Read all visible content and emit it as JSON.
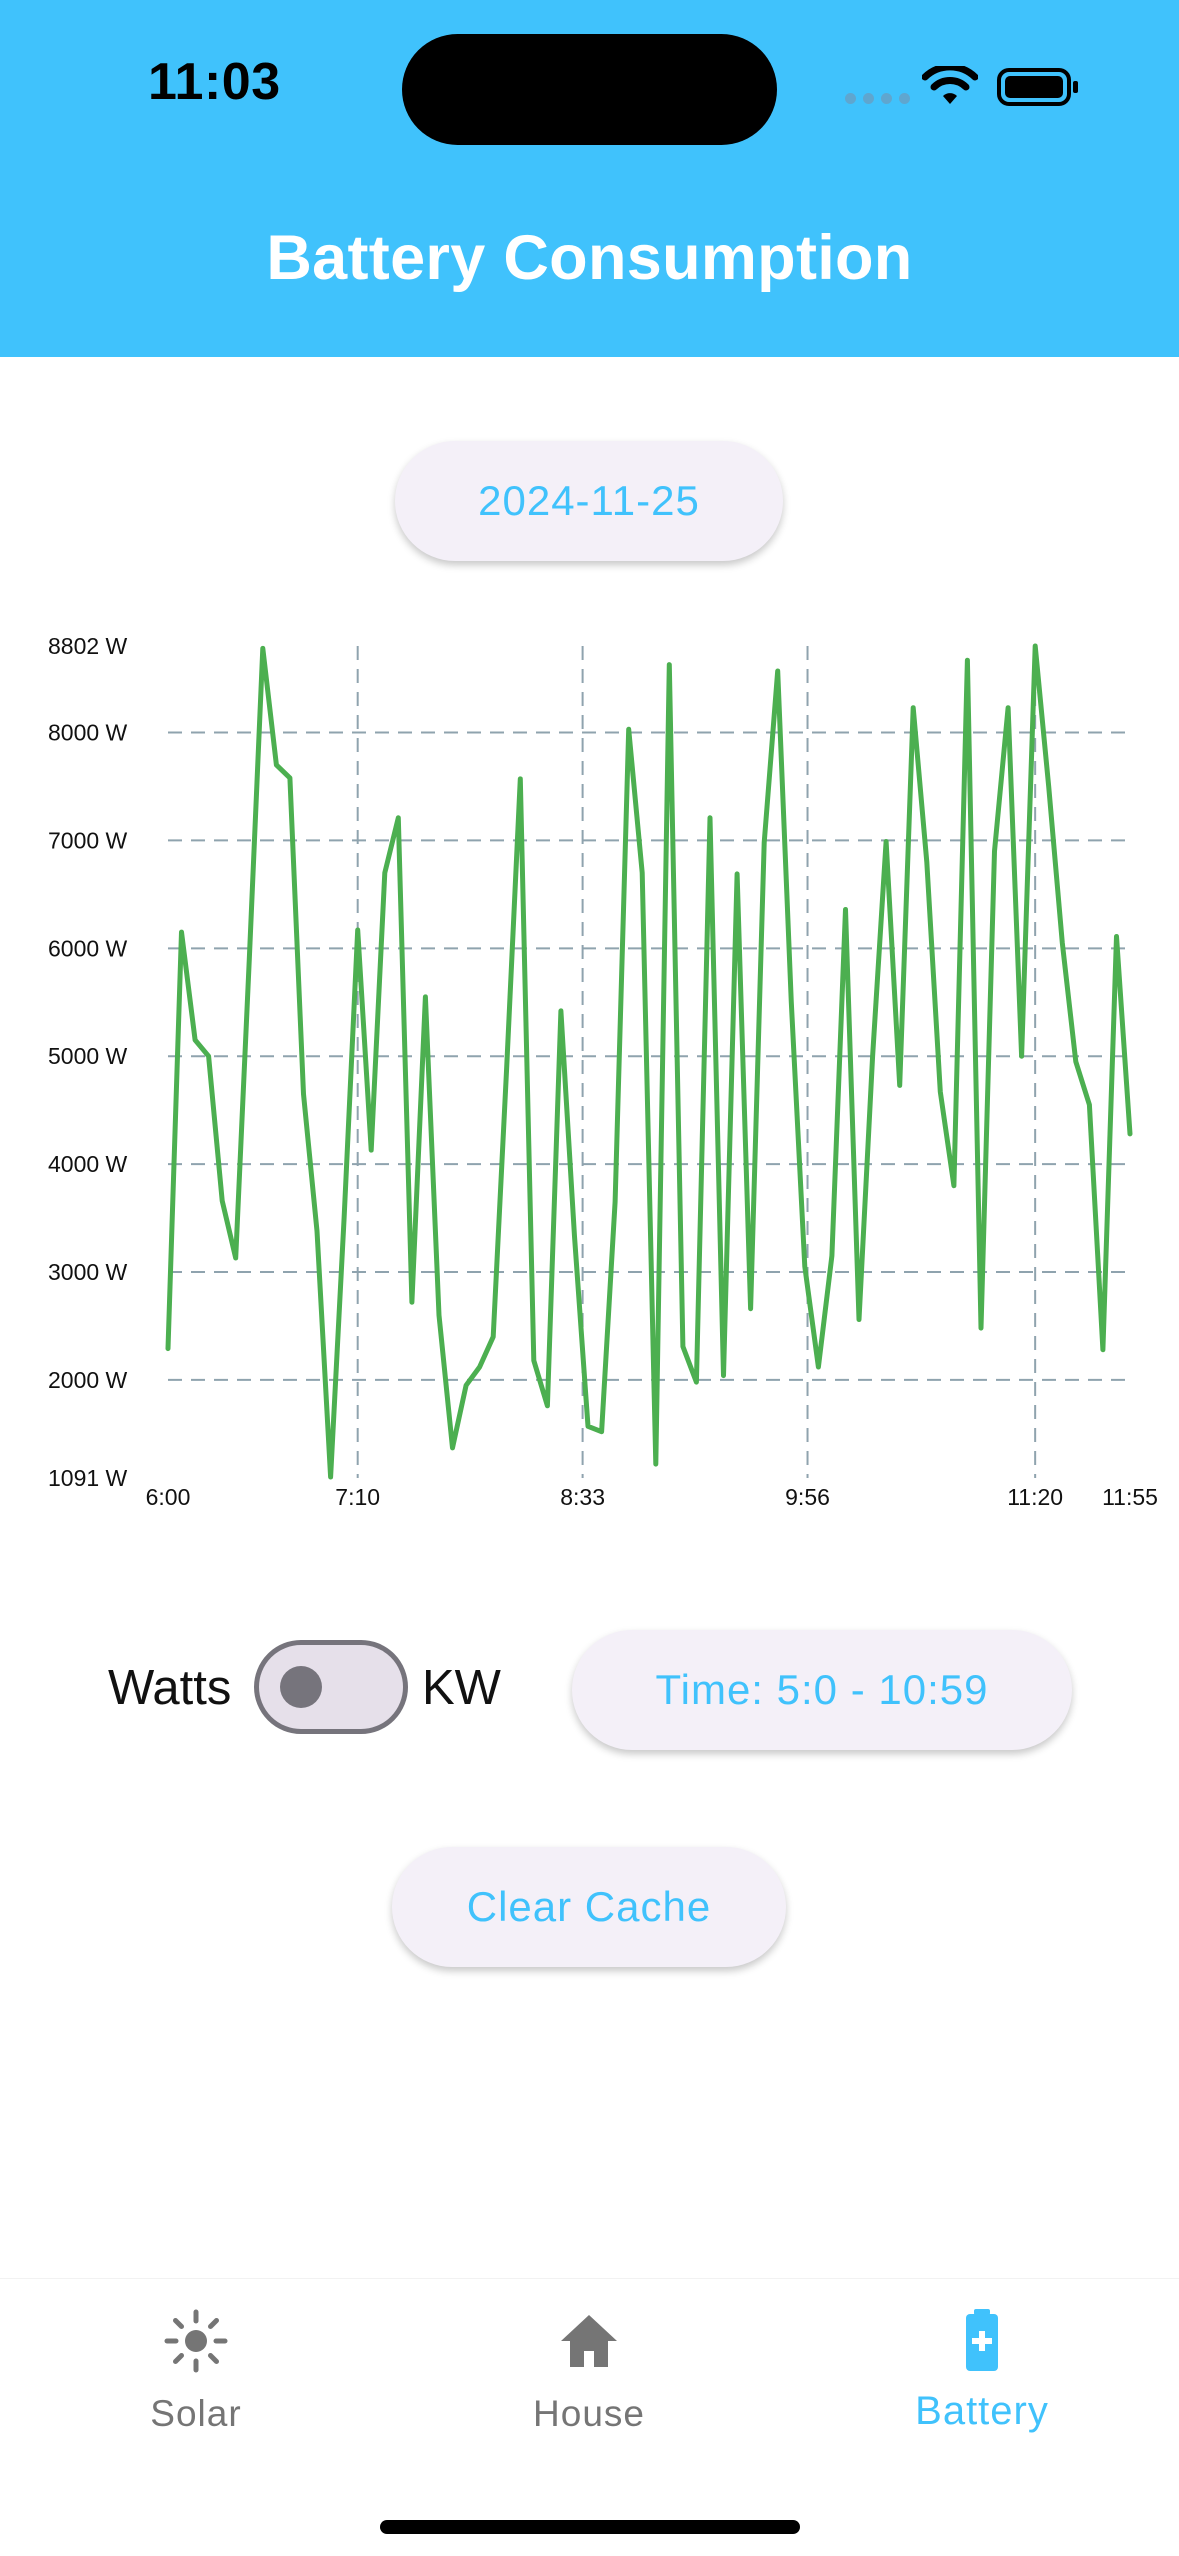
{
  "status_bar": {
    "time": "11:03"
  },
  "header": {
    "title": "Battery Consumption"
  },
  "date_button": {
    "label": "2024-11-25"
  },
  "chart_data": {
    "type": "line",
    "title": "",
    "xlabel": "",
    "ylabel": "",
    "y_unit": "W",
    "ylim": [
      1091,
      8802
    ],
    "y_ticks": [
      "1091 W",
      "2000 W",
      "3000 W",
      "4000 W",
      "5000 W",
      "6000 W",
      "7000 W",
      "8000 W",
      "8802 W"
    ],
    "x_ticks": [
      "6:00",
      "7:10",
      "8:33",
      "9:56",
      "11:20",
      "11:55"
    ],
    "grid": true,
    "color": "#4caf50",
    "series": [
      {
        "values": [
          2290,
          6150,
          5150,
          5000,
          3660,
          3130,
          5900,
          8780,
          7700,
          7580,
          4650,
          3380,
          1100,
          3500,
          6170,
          4130,
          6700,
          7210,
          2720,
          5550,
          2600,
          1370,
          1950,
          2120,
          2400,
          4900,
          7570,
          2180,
          1760,
          5420,
          3330,
          1570,
          1520,
          3650,
          8030,
          6700,
          1220,
          8630,
          2310,
          1980,
          7210,
          2040,
          6690,
          2660,
          6980,
          8570,
          5500,
          3050,
          2120,
          3150,
          6360,
          2560,
          5000,
          6990,
          4730,
          8230,
          6800,
          4670,
          3800,
          8670,
          2480,
          6900,
          8230,
          5000,
          8802,
          7500,
          6050,
          4950,
          4550,
          2280,
          6110,
          4280
        ]
      }
    ]
  },
  "unit_toggle": {
    "left_label": "Watts",
    "right_label": "KW",
    "state": "off"
  },
  "time_button": {
    "label": "Time: 5:0 - 10:59"
  },
  "clear_button": {
    "label": "Clear Cache"
  },
  "nav": {
    "items": [
      {
        "label": "Solar",
        "icon": "sun-icon"
      },
      {
        "label": "House",
        "icon": "house-icon"
      },
      {
        "label": "Battery",
        "icon": "battery-charging-icon",
        "active": true
      }
    ],
    "active_color": "#40c2fc",
    "inactive_color": "#757575"
  },
  "colors": {
    "accent": "#40c2fc",
    "line": "#4caf50",
    "button_bg": "#f4f0f8"
  }
}
